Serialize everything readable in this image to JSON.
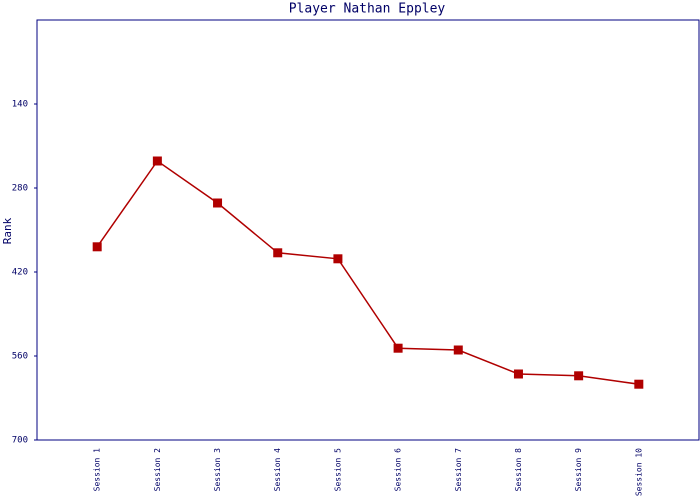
{
  "chart_data": {
    "type": "line",
    "title": "Player Nathan Eppley",
    "y_label": "Rank",
    "categories": [
      "Session 1",
      "Session 2",
      "Session 3",
      "Session 4",
      "Session 5",
      "Session 6",
      "Session 7",
      "Session 8",
      "Session 9",
      "Session 10"
    ],
    "series": [
      {
        "name": "Rank",
        "color": "#b00000",
        "values": [
          378,
          235,
          305,
          388,
          398,
          547,
          550,
          590,
          593,
          607
        ]
      }
    ],
    "ylim": [
      0,
      700
    ],
    "yticks": [
      140,
      280,
      420,
      560,
      700
    ],
    "y_inverted": true
  }
}
